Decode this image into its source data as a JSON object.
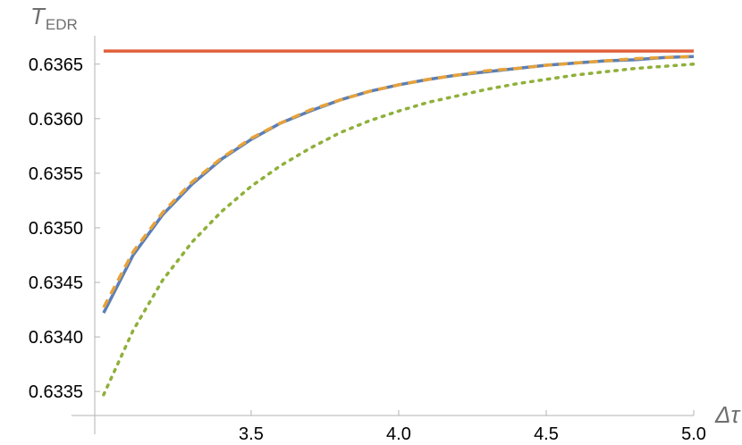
{
  "chart_data": {
    "type": "line",
    "title": "",
    "xlabel": "Δτ",
    "ylabel": {
      "main": "T",
      "subscript": "EDR"
    },
    "xlim": [
      2.97,
      5.0
    ],
    "ylim": [
      0.63328,
      0.63676
    ],
    "x_ticks": [
      {
        "value": 3.5,
        "label": "3.5"
      },
      {
        "value": 4.0,
        "label": "4.0"
      },
      {
        "value": 4.5,
        "label": "4.5"
      },
      {
        "value": 5.0,
        "label": "5.0"
      }
    ],
    "y_ticks": [
      {
        "value": 0.6335,
        "label": "0.6335"
      },
      {
        "value": 0.634,
        "label": "0.6340"
      },
      {
        "value": 0.6345,
        "label": "0.6345"
      },
      {
        "value": 0.635,
        "label": "0.6350"
      },
      {
        "value": 0.6355,
        "label": "0.6355"
      },
      {
        "value": 0.636,
        "label": "0.6360"
      },
      {
        "value": 0.6365,
        "label": "0.6365"
      }
    ],
    "grid": false,
    "legend": "none",
    "series": [
      {
        "color": "#e0603a",
        "style": "solid",
        "x": [
          3.0,
          5.0
        ],
        "y": [
          0.63662,
          0.63662
        ]
      },
      {
        "color": "#5b7fb5",
        "style": "solid",
        "x": [
          3.0,
          3.1,
          3.2,
          3.3,
          3.4,
          3.5,
          3.6,
          3.7,
          3.8,
          3.9,
          4.0,
          4.1,
          4.2,
          4.3,
          4.4,
          4.5,
          4.6,
          4.7,
          4.8,
          4.9,
          5.0
        ],
        "y": [
          0.63422,
          0.63475,
          0.63512,
          0.6354,
          0.63563,
          0.63581,
          0.63596,
          0.63607,
          0.63617,
          0.63625,
          0.63631,
          0.63636,
          0.6364,
          0.63643,
          0.63646,
          0.63649,
          0.63651,
          0.63653,
          0.63654,
          0.63656,
          0.63657
        ]
      },
      {
        "color": "#e6a23a",
        "style": "dashed",
        "x": [
          3.0,
          3.1,
          3.2,
          3.3,
          3.4,
          3.5,
          3.6,
          3.7,
          3.8,
          3.9,
          4.0,
          4.1,
          4.2,
          4.3,
          4.4,
          4.5,
          4.6,
          4.7,
          4.8,
          4.9,
          5.0
        ],
        "y": [
          0.63427,
          0.63478,
          0.63514,
          0.63542,
          0.63564,
          0.63582,
          0.63596,
          0.63608,
          0.63617,
          0.63625,
          0.63631,
          0.63636,
          0.6364,
          0.63644,
          0.63646,
          0.63649,
          0.63651,
          0.63653,
          0.63655,
          0.63656,
          0.63657
        ]
      },
      {
        "color": "#8fb03a",
        "style": "dotted",
        "x": [
          3.0,
          3.1,
          3.2,
          3.3,
          3.4,
          3.5,
          3.6,
          3.7,
          3.8,
          3.9,
          4.0,
          4.1,
          4.2,
          4.3,
          4.4,
          4.5,
          4.6,
          4.7,
          4.8,
          4.9,
          5.0
        ],
        "y": [
          0.63347,
          0.63406,
          0.63452,
          0.63487,
          0.63515,
          0.63538,
          0.63557,
          0.63573,
          0.63587,
          0.63598,
          0.63607,
          0.63615,
          0.63621,
          0.63627,
          0.63632,
          0.63636,
          0.6364,
          0.63643,
          0.63646,
          0.63648,
          0.6365
        ]
      }
    ]
  }
}
